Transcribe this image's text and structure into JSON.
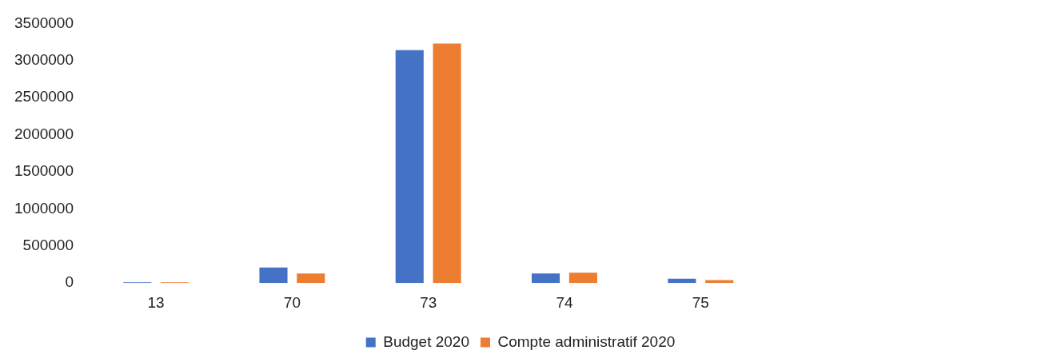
{
  "chart_data": {
    "type": "bar",
    "categories": [
      "13",
      "70",
      "73",
      "74",
      "75",
      null,
      null
    ],
    "series": [
      {
        "name": "Budget 2020",
        "color": "#4472c4",
        "values": [
          10000,
          210000,
          3140000,
          130000,
          60000,
          null,
          null
        ]
      },
      {
        "name": "Compte administratif 2020",
        "color": "#ed7d31",
        "values": [
          10000,
          130000,
          3230000,
          140000,
          40000,
          null,
          null
        ]
      }
    ],
    "ylim": [
      0,
      3500000
    ],
    "yticks": [
      0,
      500000,
      1000000,
      1500000,
      2000000,
      2500000,
      3000000,
      3500000
    ],
    "grid": false,
    "legend": "bottom"
  }
}
